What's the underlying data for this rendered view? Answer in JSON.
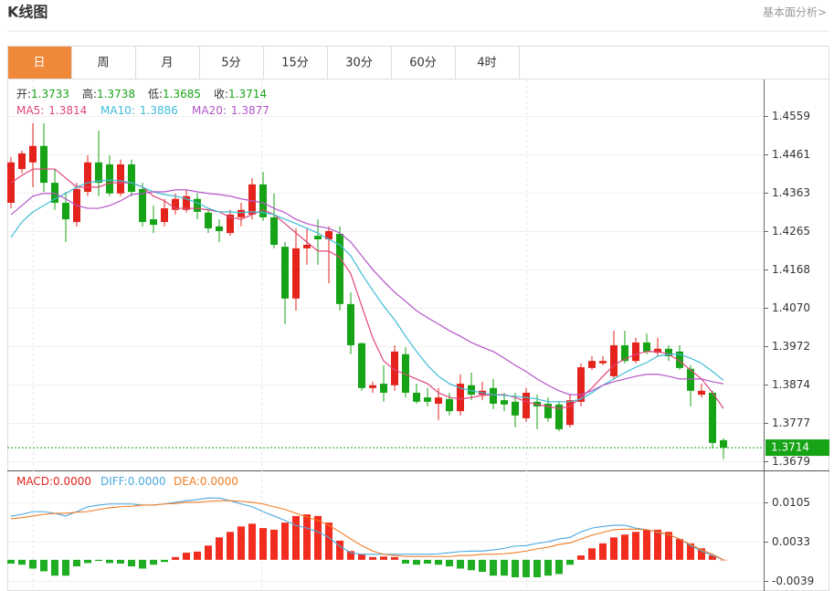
{
  "header": {
    "title": "K线图",
    "link": "基本面分析>"
  },
  "tabs": {
    "items": [
      "日",
      "周",
      "月",
      "5分",
      "15分",
      "30分",
      "60分",
      "4时"
    ],
    "active": 0
  },
  "chart_data": [
    {
      "type": "candlestick",
      "up_color": "#e4231d",
      "down_color": "#16a316",
      "ohlc_labels": [
        "开:",
        "高:",
        "低:",
        "收:"
      ],
      "open": [
        1.4338,
        1.4424,
        1.4441,
        1.4483,
        1.4389,
        1.4338,
        1.4289,
        1.4366,
        1.4441,
        1.4436,
        1.4362,
        1.4436,
        1.4373,
        1.4296,
        1.4289,
        1.432,
        1.432,
        1.4348,
        1.4313,
        1.4278,
        1.4261,
        1.4301,
        1.4308,
        1.4385,
        1.4301,
        1.4226,
        1.4094,
        1.4222,
        1.4254,
        1.4245,
        1.4259,
        1.408,
        1.398,
        1.3866,
        1.3877,
        1.3873,
        1.3952,
        1.3854,
        1.3842,
        1.3826,
        1.3838,
        1.3807,
        1.3873,
        1.3849,
        1.3866,
        1.3835,
        1.3831,
        1.3789,
        1.3831,
        1.3826,
        1.3824,
        1.3772,
        1.3831,
        1.3917,
        1.3929,
        1.3896,
        1.3975,
        1.3935,
        1.3982,
        1.3956,
        1.3966,
        1.3959,
        1.3915,
        1.3849,
        1.3854,
        1.3733
      ],
      "high": [
        1.4455,
        1.4471,
        1.4541,
        1.4541,
        1.4424,
        1.4366,
        1.4389,
        1.4459,
        1.4522,
        1.4459,
        1.4448,
        1.4448,
        1.4389,
        1.4331,
        1.4348,
        1.4362,
        1.4371,
        1.4362,
        1.4324,
        1.4296,
        1.432,
        1.4338,
        1.4401,
        1.4417,
        1.4362,
        1.4238,
        1.4273,
        1.4273,
        1.4296,
        1.4278,
        1.4278,
        1.411,
        1.3982,
        1.3882,
        1.3924,
        1.3975,
        1.397,
        1.3877,
        1.3866,
        1.3866,
        1.3854,
        1.3901,
        1.3905,
        1.3882,
        1.3889,
        1.3854,
        1.3854,
        1.3866,
        1.3849,
        1.3842,
        1.3831,
        1.3849,
        1.3929,
        1.3947,
        1.3947,
        1.4012,
        1.4012,
        1.3994,
        1.4005,
        1.3994,
        1.3975,
        1.3975,
        1.3924,
        1.3877,
        1.3859,
        1.3738
      ],
      "low": [
        1.4324,
        1.4413,
        1.4378,
        1.4366,
        1.432,
        1.4238,
        1.4278,
        1.4355,
        1.4355,
        1.4355,
        1.4355,
        1.4355,
        1.4278,
        1.4261,
        1.4278,
        1.4308,
        1.4313,
        1.4296,
        1.4261,
        1.4238,
        1.4254,
        1.4278,
        1.4296,
        1.4292,
        1.4222,
        1.4029,
        1.4063,
        1.418,
        1.418,
        1.4133,
        1.4063,
        1.3952,
        1.3859,
        1.3854,
        1.3831,
        1.3859,
        1.3842,
        1.3826,
        1.3819,
        1.3784,
        1.3796,
        1.3796,
        1.3835,
        1.3835,
        1.3812,
        1.3807,
        1.3766,
        1.378,
        1.3761,
        1.378,
        1.3756,
        1.3766,
        1.3819,
        1.3912,
        1.3924,
        1.3889,
        1.3929,
        1.3929,
        1.3952,
        1.3947,
        1.3935,
        1.3912,
        1.3819,
        1.3842,
        1.3712,
        1.3685
      ],
      "close": [
        1.4441,
        1.4464,
        1.4483,
        1.4389,
        1.4338,
        1.4296,
        1.4373,
        1.4441,
        1.4389,
        1.4362,
        1.4436,
        1.4366,
        1.4289,
        1.4282,
        1.4324,
        1.4348,
        1.4355,
        1.4315,
        1.4273,
        1.4266,
        1.4308,
        1.432,
        1.4385,
        1.4301,
        1.4231,
        1.4094,
        1.4222,
        1.4231,
        1.4245,
        1.4266,
        1.408,
        1.3975,
        1.3866,
        1.3873,
        1.3854,
        1.3959,
        1.3854,
        1.3831,
        1.3831,
        1.3842,
        1.3807,
        1.3877,
        1.3849,
        1.3859,
        1.3826,
        1.3824,
        1.3796,
        1.3854,
        1.3819,
        1.3789,
        1.3761,
        1.3835,
        1.3919,
        1.3935,
        1.3935,
        1.3975,
        1.3935,
        1.3982,
        1.3959,
        1.3966,
        1.3947,
        1.3917,
        1.3859,
        1.3859,
        1.3726,
        1.3714
      ],
      "series": [
        {
          "name": "MA5:",
          "color": "#e0457b",
          "values": [
            1.4389,
            1.4408,
            1.4424,
            1.4424,
            1.4424,
            1.4401,
            1.4378,
            1.4378,
            1.4378,
            1.4389,
            1.4389,
            1.4389,
            1.4378,
            1.4355,
            1.4343,
            1.4324,
            1.4324,
            1.4324,
            1.432,
            1.4315,
            1.4301,
            1.4296,
            1.4308,
            1.432,
            1.4308,
            1.4285,
            1.4261,
            1.4238,
            1.4215,
            1.4215,
            1.4199,
            1.4157,
            1.4075,
            1.3994,
            1.3935,
            1.3912,
            1.3901,
            1.3889,
            1.3877,
            1.3854,
            1.3842,
            1.3838,
            1.3842,
            1.3847,
            1.3849,
            1.3849,
            1.3842,
            1.3831,
            1.3824,
            1.3819,
            1.3814,
            1.3819,
            1.3842,
            1.3866,
            1.3896,
            1.3924,
            1.394,
            1.3952,
            1.3959,
            1.3959,
            1.3952,
            1.3935,
            1.3912,
            1.3889,
            1.3854,
            1.3814
          ]
        },
        {
          "name": "MA10:",
          "color": "#3fbcd8",
          "values": [
            1.425,
            1.4289,
            1.4315,
            1.4331,
            1.4348,
            1.4362,
            1.4378,
            1.4389,
            1.4394,
            1.4396,
            1.4394,
            1.4389,
            1.4378,
            1.4366,
            1.4359,
            1.4355,
            1.4348,
            1.4338,
            1.4324,
            1.4315,
            1.4315,
            1.4313,
            1.4315,
            1.4313,
            1.4308,
            1.4296,
            1.4285,
            1.4273,
            1.4261,
            1.4245,
            1.4231,
            1.4203,
            1.4157,
            1.4115,
            1.4075,
            1.404,
            1.3998,
            1.3959,
            1.3924,
            1.3896,
            1.3877,
            1.3866,
            1.3859,
            1.3854,
            1.3849,
            1.3847,
            1.3845,
            1.3842,
            1.3838,
            1.3831,
            1.3831,
            1.3831,
            1.3838,
            1.3854,
            1.3873,
            1.3889,
            1.3905,
            1.3919,
            1.3931,
            1.3947,
            1.3952,
            1.3952,
            1.3942,
            1.3929,
            1.3908,
            1.3886
          ]
        },
        {
          "name": "MA20:",
          "color": "#b455c8",
          "values": [
            1.4308,
            1.4331,
            1.4355,
            1.4362,
            1.4362,
            1.4348,
            1.4331,
            1.4324,
            1.4324,
            1.4331,
            1.4343,
            1.4359,
            1.4362,
            1.4366,
            1.4366,
            1.4371,
            1.4371,
            1.4366,
            1.4362,
            1.4359,
            1.4355,
            1.4348,
            1.4343,
            1.4338,
            1.4324,
            1.4313,
            1.4296,
            1.4285,
            1.4278,
            1.4273,
            1.4261,
            1.4238,
            1.4203,
            1.4168,
            1.4138,
            1.411,
            1.4087,
            1.4063,
            1.4045,
            1.4029,
            1.4012,
            1.3998,
            1.3982,
            1.397,
            1.3959,
            1.3942,
            1.3924,
            1.3908,
            1.3889,
            1.3873,
            1.3859,
            1.3849,
            1.3849,
            1.3859,
            1.3873,
            1.3882,
            1.3889,
            1.3896,
            1.3901,
            1.3901,
            1.3896,
            1.3889,
            1.3889,
            1.3889,
            1.3882,
            1.3877
          ]
        }
      ],
      "ylim": [
        1.3656,
        1.465
      ],
      "yticks": [
        1.4559,
        1.4461,
        1.4363,
        1.4265,
        1.4168,
        {
          "value": 1.407,
          "label": "1.4070"
        },
        1.3972,
        1.3874,
        1.3777,
        1.3679
      ],
      "grid": true
    },
    {
      "type": "macd",
      "histogram": {
        "name": "MACD:",
        "color": "#e4231d",
        "up_color": "#f22c1e",
        "down_color": "#1fae23",
        "current_label": "0.0000",
        "values": [
          -0.0007,
          -0.0009,
          -0.0016,
          -0.0021,
          -0.0029,
          -0.0029,
          -0.0012,
          -0.0006,
          -0.0002,
          -0.0006,
          -0.0007,
          -0.0012,
          -0.0016,
          -0.0009,
          -0.0004,
          0.0005,
          0.0013,
          0.0015,
          0.0026,
          0.0041,
          0.0051,
          0.0061,
          0.0066,
          0.0058,
          0.0055,
          0.0068,
          0.008,
          0.0083,
          0.008,
          0.0068,
          0.0035,
          0.0016,
          0.001,
          0.0005,
          0.0006,
          0.0005,
          -0.0007,
          -0.0009,
          -0.0007,
          -0.0009,
          -0.0012,
          -0.0016,
          -0.0019,
          -0.0022,
          -0.0029,
          -0.0029,
          -0.0032,
          -0.0032,
          -0.0032,
          -0.0029,
          -0.0026,
          -0.0009,
          0.0008,
          0.0021,
          0.003,
          0.0041,
          0.0046,
          0.0051,
          0.0055,
          0.0055,
          0.0051,
          0.0038,
          0.003,
          0.0021,
          0.0008,
          0
        ]
      },
      "series": [
        {
          "name": "DIFF:",
          "color": "#4aa8e0",
          "current_label": "0.0000",
          "values": [
            0.008,
            0.0083,
            0.0088,
            0.0088,
            0.0085,
            0.008,
            0.0088,
            0.0097,
            0.01,
            0.0102,
            0.0102,
            0.0102,
            0.01,
            0.01,
            0.0102,
            0.0105,
            0.0108,
            0.011,
            0.0113,
            0.0113,
            0.0108,
            0.0102,
            0.0097,
            0.0088,
            0.008,
            0.0072,
            0.0063,
            0.0058,
            0.0051,
            0.0041,
            0.0025,
            0.0013,
            0.001,
            0.001,
            0.001,
            0.001,
            0.001,
            0.001,
            0.001,
            0.0011,
            0.0013,
            0.0015,
            0.0016,
            0.0016,
            0.0018,
            0.0021,
            0.0025,
            0.0026,
            0.003,
            0.0033,
            0.0038,
            0.0041,
            0.0051,
            0.0058,
            0.0061,
            0.0063,
            0.0063,
            0.0058,
            0.0055,
            0.005,
            0.0046,
            0.0038,
            0.0026,
            0.0016,
            0.0008,
            0
          ]
        },
        {
          "name": "DEA:",
          "color": "#f07d24",
          "current_label": "0.0000",
          "values": [
            0.0075,
            0.0077,
            0.008,
            0.0083,
            0.0085,
            0.0085,
            0.0087,
            0.0088,
            0.0092,
            0.0095,
            0.0097,
            0.0098,
            0.01,
            0.01,
            0.0102,
            0.0103,
            0.0105,
            0.0105,
            0.0107,
            0.0108,
            0.0108,
            0.0107,
            0.0105,
            0.0102,
            0.0097,
            0.0092,
            0.0085,
            0.0078,
            0.0072,
            0.0063,
            0.0051,
            0.0038,
            0.0026,
            0.0016,
            0.001,
            0.0008,
            0.0006,
            0.0006,
            0.0006,
            0.0006,
            0.0006,
            0.0008,
            0.0008,
            0.001,
            0.001,
            0.0011,
            0.0013,
            0.0016,
            0.002,
            0.0023,
            0.0028,
            0.0031,
            0.0038,
            0.0045,
            0.005,
            0.0055,
            0.0056,
            0.0056,
            0.0055,
            0.0051,
            0.0046,
            0.0038,
            0.0028,
            0.0018,
            0.001,
            0
          ]
        }
      ],
      "ylim": [
        -0.0057,
        0.016
      ],
      "yticks": [
        0.0105,
        0.0033,
        -0.0039
      ],
      "grid": true
    }
  ]
}
